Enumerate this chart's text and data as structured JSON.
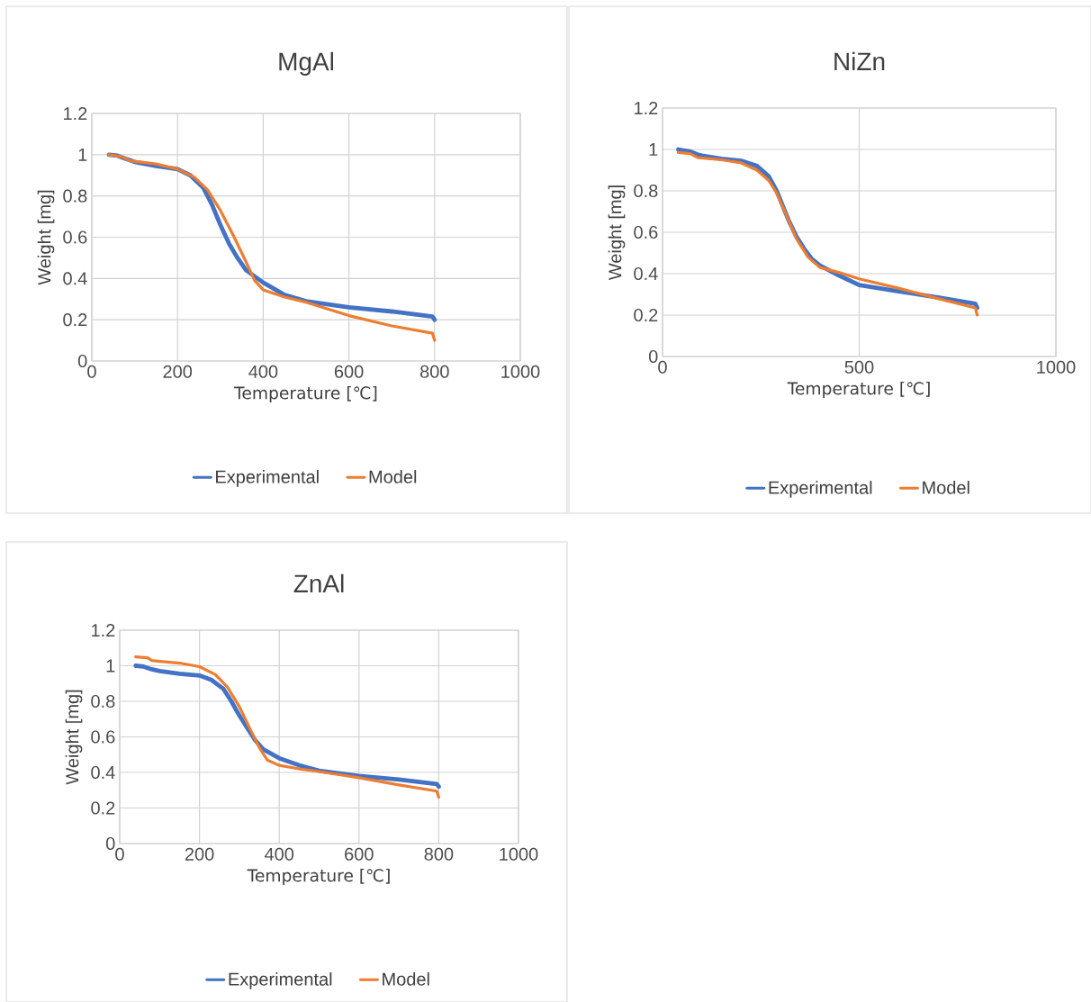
{
  "chart_data": [
    {
      "type": "line",
      "title": "MgAl",
      "xlabel": "Temperature [℃]",
      "ylabel": "Weight [mg]",
      "xlim": [
        0,
        1000
      ],
      "ylim": [
        0,
        1.2
      ],
      "xticks": [
        0,
        200,
        400,
        600,
        800,
        1000
      ],
      "yticks": [
        0,
        0.2,
        0.4,
        0.6,
        0.8,
        1,
        1.2
      ],
      "grid": true,
      "legend": "bottom",
      "marker": "none",
      "line_style": "solid",
      "series": [
        {
          "name": "Experimental",
          "color": "#4472c4",
          "x": [
            40,
            60,
            80,
            100,
            150,
            200,
            230,
            260,
            280,
            300,
            320,
            340,
            360,
            400,
            450,
            500,
            600,
            700,
            795,
            800
          ],
          "values": [
            1.0,
            0.995,
            0.98,
            0.965,
            0.945,
            0.93,
            0.9,
            0.84,
            0.76,
            0.66,
            0.57,
            0.5,
            0.44,
            0.38,
            0.32,
            0.29,
            0.26,
            0.24,
            0.215,
            0.2
          ]
        },
        {
          "name": "Model",
          "color": "#ed7d31",
          "x": [
            40,
            70,
            90,
            150,
            200,
            240,
            270,
            300,
            330,
            360,
            380,
            400,
            450,
            500,
            600,
            700,
            795,
            800
          ],
          "values": [
            1.0,
            0.99,
            0.97,
            0.955,
            0.93,
            0.89,
            0.83,
            0.73,
            0.61,
            0.48,
            0.39,
            0.345,
            0.31,
            0.285,
            0.22,
            0.17,
            0.135,
            0.1
          ]
        }
      ]
    },
    {
      "type": "line",
      "title": "NiZn",
      "xlabel": "Temperature [℃]",
      "ylabel": "Weight [mg]",
      "xlim": [
        0,
        1000
      ],
      "ylim": [
        0,
        1.2
      ],
      "xticks": [
        0,
        500,
        1000
      ],
      "yticks": [
        0,
        0.2,
        0.4,
        0.6,
        0.8,
        1,
        1.2
      ],
      "grid": true,
      "legend": "bottom",
      "marker": "none",
      "line_style": "solid",
      "series": [
        {
          "name": "Experimental",
          "color": "#4472c4",
          "x": [
            40,
            70,
            90,
            100,
            150,
            200,
            240,
            270,
            290,
            320,
            340,
            360,
            380,
            400,
            450,
            500,
            600,
            700,
            795,
            800
          ],
          "values": [
            1.0,
            0.99,
            0.975,
            0.97,
            0.955,
            0.945,
            0.92,
            0.87,
            0.8,
            0.66,
            0.58,
            0.52,
            0.47,
            0.44,
            0.39,
            0.345,
            0.315,
            0.285,
            0.255,
            0.235
          ]
        },
        {
          "name": "Model",
          "color": "#ed7d31",
          "x": [
            40,
            70,
            90,
            150,
            200,
            240,
            270,
            290,
            320,
            340,
            370,
            400,
            450,
            500,
            600,
            700,
            795,
            800
          ],
          "values": [
            0.985,
            0.98,
            0.96,
            0.95,
            0.935,
            0.9,
            0.85,
            0.79,
            0.66,
            0.57,
            0.48,
            0.43,
            0.405,
            0.375,
            0.33,
            0.28,
            0.235,
            0.2
          ]
        }
      ]
    },
    {
      "type": "line",
      "title": "ZnAl",
      "xlabel": "Temperature [℃]",
      "ylabel": "Weight [mg]",
      "xlim": [
        0,
        1000
      ],
      "ylim": [
        0,
        1.2
      ],
      "xticks": [
        0,
        200,
        400,
        600,
        800,
        1000
      ],
      "yticks": [
        0,
        0.2,
        0.4,
        0.6,
        0.8,
        1,
        1.2
      ],
      "grid": true,
      "legend": "bottom",
      "marker": "none",
      "line_style": "solid",
      "series": [
        {
          "name": "Experimental",
          "color": "#4472c4",
          "x": [
            40,
            60,
            80,
            100,
            150,
            200,
            230,
            260,
            280,
            300,
            320,
            340,
            360,
            400,
            450,
            500,
            600,
            700,
            795,
            800
          ],
          "values": [
            1.0,
            0.995,
            0.98,
            0.97,
            0.955,
            0.945,
            0.92,
            0.87,
            0.8,
            0.72,
            0.65,
            0.58,
            0.53,
            0.48,
            0.44,
            0.41,
            0.38,
            0.36,
            0.335,
            0.32
          ]
        },
        {
          "name": "Model",
          "color": "#ed7d31",
          "x": [
            40,
            70,
            80,
            100,
            150,
            200,
            240,
            270,
            300,
            330,
            350,
            370,
            400,
            450,
            500,
            600,
            700,
            795,
            800
          ],
          "values": [
            1.05,
            1.045,
            1.03,
            1.025,
            1.015,
            0.995,
            0.95,
            0.88,
            0.77,
            0.63,
            0.54,
            0.47,
            0.44,
            0.42,
            0.405,
            0.37,
            0.33,
            0.295,
            0.26
          ]
        }
      ]
    }
  ]
}
